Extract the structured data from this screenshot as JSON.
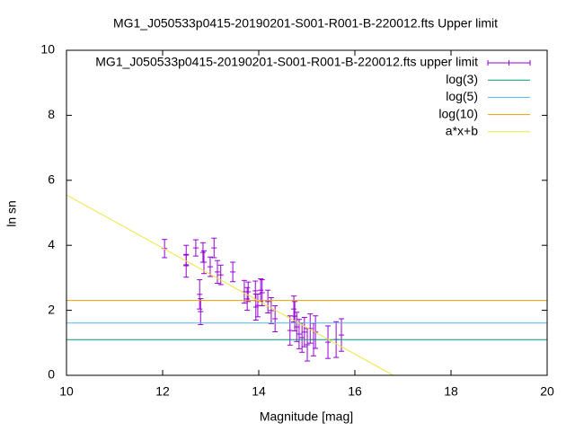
{
  "chart_data": {
    "type": "errorbar",
    "title": "MG1_J050533p0415-20190201-S001-R001-B-220012.fts Upper limit",
    "xlabel": "Magnitude [mag]",
    "ylabel": "ln sn",
    "xlim": [
      10,
      20
    ],
    "ylim": [
      0,
      10
    ],
    "xticks": [
      10,
      12,
      14,
      16,
      18,
      20
    ],
    "yticks": [
      0,
      2,
      4,
      6,
      8,
      10
    ],
    "legend": "top-right",
    "series": [
      {
        "name": "MG1_J050533p0415-20190201-S001-R001-B-220012.fts upper limit",
        "type": "errorbar",
        "color": "#9400d3",
        "x": [
          12.04,
          12.49,
          12.49,
          12.69,
          12.77,
          12.79,
          12.84,
          12.86,
          12.99,
          13.07,
          13.14,
          13.21,
          13.46,
          13.7,
          13.76,
          13.78,
          13.93,
          13.94,
          13.98,
          14.04,
          14.07,
          14.19,
          14.26,
          14.34,
          14.65,
          14.73,
          14.75,
          14.79,
          14.84,
          14.9,
          14.95,
          15.01,
          15.07,
          15.14,
          15.18,
          15.44,
          15.61,
          15.72
        ],
        "values": [
          3.9,
          3.7,
          3.37,
          3.92,
          2.49,
          1.96,
          3.78,
          3.48,
          3.34,
          3.92,
          3.18,
          3.09,
          3.18,
          2.57,
          2.35,
          2.57,
          2.6,
          2.1,
          2.15,
          2.62,
          2.54,
          2.27,
          1.99,
          1.74,
          1.38,
          2.04,
          1.82,
          1.49,
          1.27,
          1.16,
          1.33,
          0.94,
          1.44,
          1.1,
          1.33,
          1.02,
          1.1,
          1.24
        ],
        "errors": [
          0.28,
          0.3,
          0.35,
          0.25,
          0.45,
          0.4,
          0.3,
          0.35,
          0.3,
          0.3,
          0.35,
          0.3,
          0.3,
          0.35,
          0.35,
          0.3,
          0.3,
          0.4,
          0.35,
          0.35,
          0.4,
          0.35,
          0.4,
          0.4,
          0.45,
          0.4,
          0.45,
          0.45,
          0.45,
          0.45,
          0.45,
          0.5,
          0.45,
          0.5,
          0.5,
          0.5,
          0.55,
          0.5
        ]
      },
      {
        "name": "log(3)",
        "type": "hline",
        "color": "#009e73",
        "value": 1.0986
      },
      {
        "name": "log(5)",
        "type": "hline",
        "color": "#56b4e9",
        "value": 1.6094
      },
      {
        "name": "log(10)",
        "type": "hline",
        "color": "#e69f00",
        "value": 2.3026
      },
      {
        "name": "a*x+b",
        "type": "line",
        "color": "#f0e442",
        "x": [
          10,
          16.8
        ],
        "values": [
          5.55,
          0
        ]
      }
    ]
  }
}
